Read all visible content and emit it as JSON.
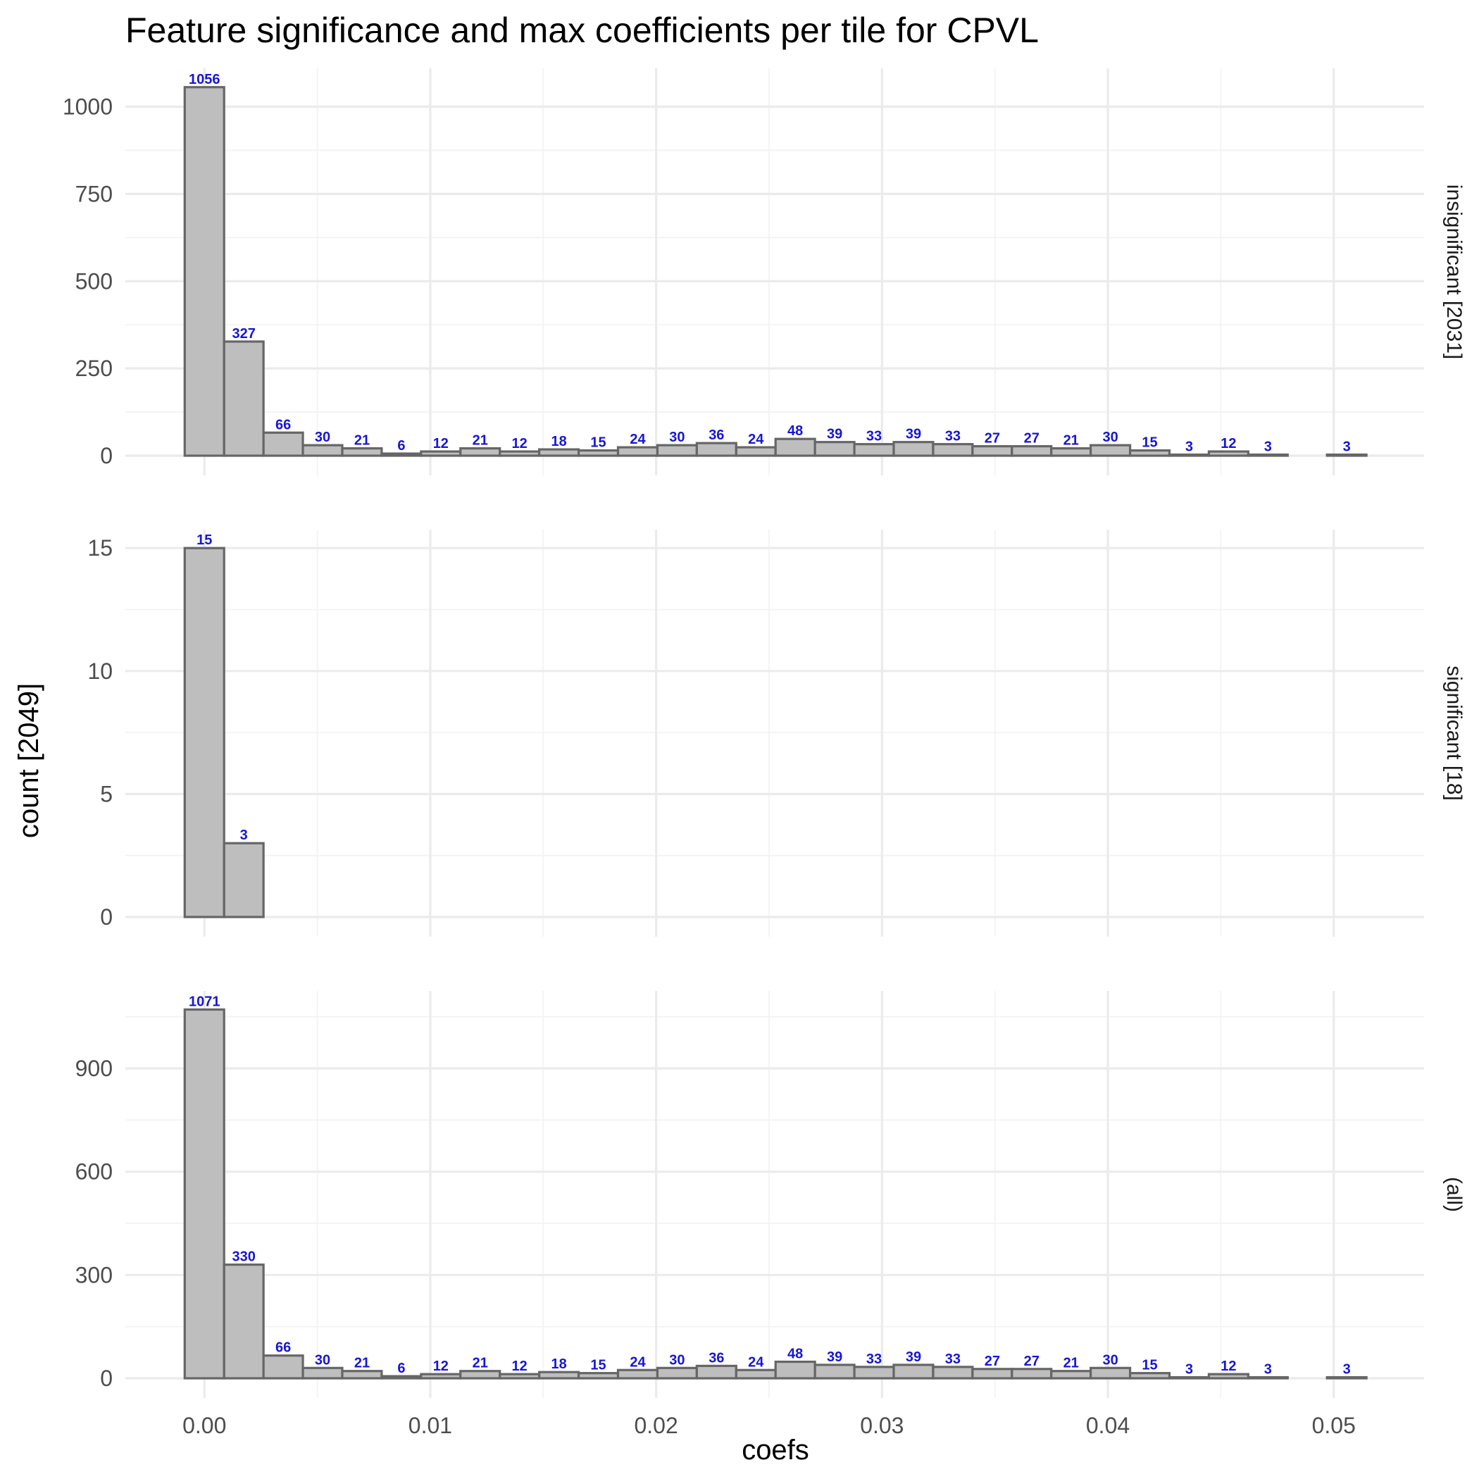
{
  "chart_data": {
    "type": "bar",
    "title": "Feature significance and max coefficients per tile for CPVL",
    "xlabel": "coefs",
    "ylabel": "count [2049]",
    "xlim": [
      -0.0035,
      0.054
    ],
    "x_ticks": [
      "0.00",
      "0.01",
      "0.02",
      "0.03",
      "0.04",
      "0.05"
    ],
    "bin_width": 0.001744,
    "bin_centers": [
      0.0,
      0.001744,
      0.003488,
      0.005232,
      0.006976,
      0.00872,
      0.010464,
      0.012208,
      0.013952,
      0.015696,
      0.01744,
      0.019184,
      0.020928,
      0.022672,
      0.024416,
      0.02616,
      0.027904,
      0.029648,
      0.031392,
      0.033136,
      0.03488,
      0.036624,
      0.038368,
      0.040112,
      0.041856,
      0.0436,
      0.045344,
      0.047088,
      0.048832,
      0.050576
    ],
    "grid": true,
    "panels": [
      {
        "strip": "insignificant [2031]",
        "y_ticks": [
          "0",
          "250",
          "500",
          "750",
          "1000"
        ],
        "ylim": [
          0,
          1110
        ],
        "values": [
          1056,
          327,
          66,
          30,
          21,
          6,
          12,
          21,
          12,
          18,
          15,
          24,
          30,
          36,
          24,
          48,
          39,
          33,
          39,
          33,
          27,
          27,
          21,
          30,
          15,
          3,
          12,
          3,
          0,
          3
        ],
        "labels": [
          "1056",
          "327",
          "66",
          "30",
          "21",
          "6",
          "12",
          "21",
          "12",
          "18",
          "15",
          "24",
          "30",
          "36",
          "24",
          "48",
          "39",
          "33",
          "39",
          "33",
          "27",
          "27",
          "21",
          "30",
          "15",
          "3",
          "12",
          "3",
          "",
          "3"
        ]
      },
      {
        "strip": "significant [18]",
        "y_ticks": [
          "0",
          "5",
          "10",
          "15"
        ],
        "ylim": [
          0,
          15.75
        ],
        "values": [
          15,
          3,
          0,
          0,
          0,
          0,
          0,
          0,
          0,
          0,
          0,
          0,
          0,
          0,
          0,
          0,
          0,
          0,
          0,
          0,
          0,
          0,
          0,
          0,
          0,
          0,
          0,
          0,
          0,
          0
        ],
        "labels": [
          "15",
          "3",
          "",
          "",
          "",
          "",
          "",
          "",
          "",
          "",
          "",
          "",
          "",
          "",
          "",
          "",
          "",
          "",
          "",
          "",
          "",
          "",
          "",
          "",
          "",
          "",
          "",
          "",
          "",
          ""
        ]
      },
      {
        "strip": "(all)",
        "y_ticks": [
          "0",
          "300",
          "600",
          "900"
        ],
        "ylim": [
          0,
          1125
        ],
        "values": [
          1071,
          330,
          66,
          30,
          21,
          6,
          12,
          21,
          12,
          18,
          15,
          24,
          30,
          36,
          24,
          48,
          39,
          33,
          39,
          33,
          27,
          27,
          21,
          30,
          15,
          3,
          12,
          3,
          0,
          3
        ],
        "labels": [
          "1071",
          "330",
          "66",
          "30",
          "21",
          "6",
          "12",
          "21",
          "12",
          "18",
          "15",
          "24",
          "30",
          "36",
          "24",
          "48",
          "39",
          "33",
          "39",
          "33",
          "27",
          "27",
          "21",
          "30",
          "15",
          "3",
          "12",
          "3",
          "",
          "3"
        ]
      }
    ],
    "colors": {
      "bar_fill": "#bebebe",
      "bar_outline": "#666666",
      "data_label": "#1616d6"
    }
  }
}
